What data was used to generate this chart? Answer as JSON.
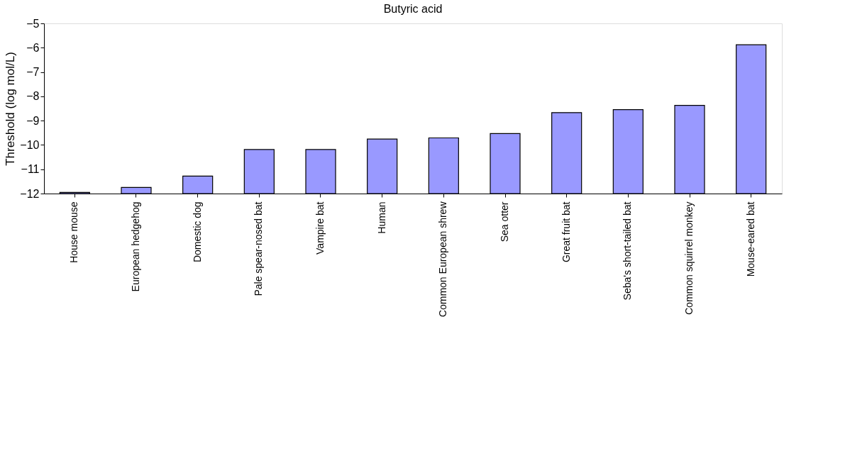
{
  "chart_data": {
    "type": "bar",
    "title": "Butyric acid",
    "ylabel": "Threshold (log mol/L)",
    "categories": [
      "House mouse",
      "European hedgehog",
      "Domestic dog",
      "Pale spear-nosed bat",
      "Vampire bat",
      "Human",
      "Common European shrew",
      "Sea otter",
      "Great fruit bat",
      "Seba's short-tailed bat",
      "Common squirrel monkey",
      "Mouse-eared bat"
    ],
    "base": [
      -12,
      -12,
      -12,
      -12,
      -12,
      -12,
      -12,
      -12,
      -12,
      -12,
      -12,
      -12
    ],
    "values": [
      0.05,
      0.25,
      0.72,
      1.81,
      1.81,
      2.24,
      2.29,
      2.47,
      3.33,
      3.45,
      3.63,
      6.12
    ],
    "color": "#9999ff",
    "ylim": [
      -12,
      -5
    ],
    "yticks": [
      -12,
      -11,
      -10,
      -9,
      -8,
      -7,
      -6,
      -5
    ],
    "grid": false
  }
}
